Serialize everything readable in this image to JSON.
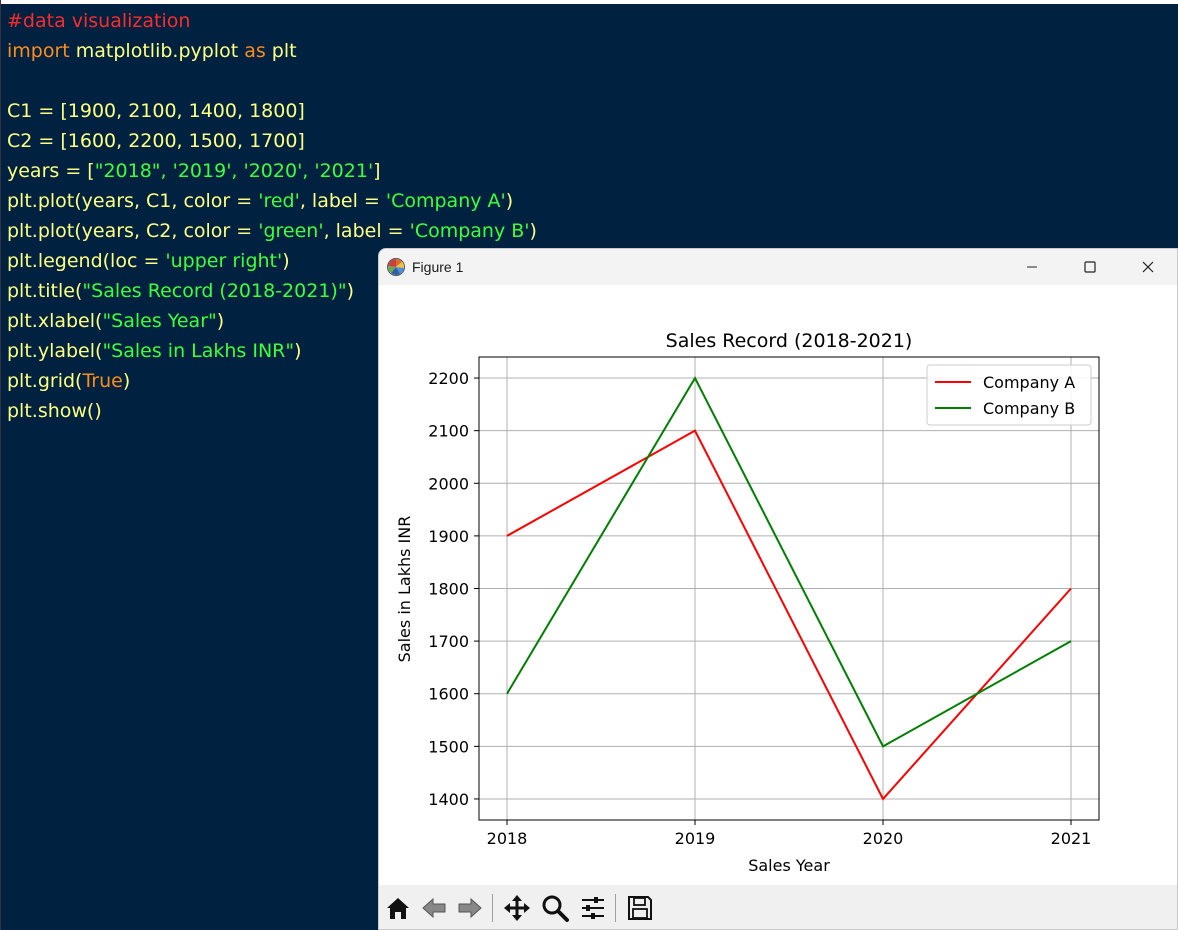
{
  "editor": {
    "lines": [
      [
        {
          "t": "#data visualization",
          "c": "comment"
        }
      ],
      [
        {
          "t": "import",
          "c": "kw"
        },
        {
          "t": " matplotlib.pyplot ",
          "c": "plain"
        },
        {
          "t": "as",
          "c": "kw"
        },
        {
          "t": " plt",
          "c": "plain"
        }
      ],
      [],
      [
        {
          "t": "C1 = [1900, 2100, 1400, 1800]",
          "c": "plain"
        }
      ],
      [
        {
          "t": "C2 = [1600, 2200, 1500, 1700]",
          "c": "plain"
        }
      ],
      [
        {
          "t": "years = [",
          "c": "plain"
        },
        {
          "t": "\"2018\", '2019', '2020', '2021'",
          "c": "str"
        },
        {
          "t": "]",
          "c": "plain"
        }
      ],
      [
        {
          "t": "plt.plot(years, C1, color = ",
          "c": "plain"
        },
        {
          "t": "'red'",
          "c": "str"
        },
        {
          "t": ", label = ",
          "c": "plain"
        },
        {
          "t": "'Company A'",
          "c": "str"
        },
        {
          "t": ")",
          "c": "plain"
        }
      ],
      [
        {
          "t": "plt.plot(years, C2, color = ",
          "c": "plain"
        },
        {
          "t": "'green'",
          "c": "str"
        },
        {
          "t": ", label = ",
          "c": "plain"
        },
        {
          "t": "'Company B'",
          "c": "str"
        },
        {
          "t": ")",
          "c": "plain"
        }
      ],
      [
        {
          "t": "plt.legend(loc = ",
          "c": "plain"
        },
        {
          "t": "'upper right'",
          "c": "str"
        },
        {
          "t": ")",
          "c": "plain"
        }
      ],
      [
        {
          "t": "plt.title(",
          "c": "plain"
        },
        {
          "t": "\"Sales Record (2018-2021)\"",
          "c": "str"
        },
        {
          "t": ")",
          "c": "plain"
        }
      ],
      [
        {
          "t": "plt.xlabel(",
          "c": "plain"
        },
        {
          "t": "\"Sales Year\"",
          "c": "str"
        },
        {
          "t": ")",
          "c": "plain"
        }
      ],
      [
        {
          "t": "plt.ylabel(",
          "c": "plain"
        },
        {
          "t": "\"Sales in Lakhs INR\"",
          "c": "str"
        },
        {
          "t": ")",
          "c": "plain"
        }
      ],
      [
        {
          "t": "plt.grid(",
          "c": "plain"
        },
        {
          "t": "True",
          "c": "kw"
        },
        {
          "t": ")",
          "c": "plain"
        }
      ],
      [
        {
          "t": "plt.show()",
          "c": "plain"
        }
      ]
    ]
  },
  "window": {
    "title": "Figure 1",
    "controls": [
      "minimize-icon",
      "maximize-icon",
      "close-icon"
    ]
  },
  "toolbar": {
    "buttons": [
      "home-icon",
      "back-icon",
      "forward-icon",
      "pan-icon",
      "zoom-icon",
      "configure-subplots-icon",
      "save-icon"
    ]
  },
  "chart_data": {
    "type": "line",
    "title": "Sales Record (2018-2021)",
    "xlabel": "Sales Year",
    "ylabel": "Sales in Lakhs INR",
    "categories": [
      "2018",
      "2019",
      "2020",
      "2021"
    ],
    "series": [
      {
        "name": "Company A",
        "color": "#ff0000",
        "values": [
          1900,
          2100,
          1400,
          1800
        ]
      },
      {
        "name": "Company B",
        "color": "#008000",
        "values": [
          1600,
          2200,
          1500,
          1700
        ]
      }
    ],
    "yticks": [
      1400,
      1500,
      1600,
      1700,
      1800,
      1900,
      2000,
      2100,
      2200
    ],
    "ylim": [
      1360,
      2240
    ],
    "grid": true,
    "legend": "upper right"
  }
}
